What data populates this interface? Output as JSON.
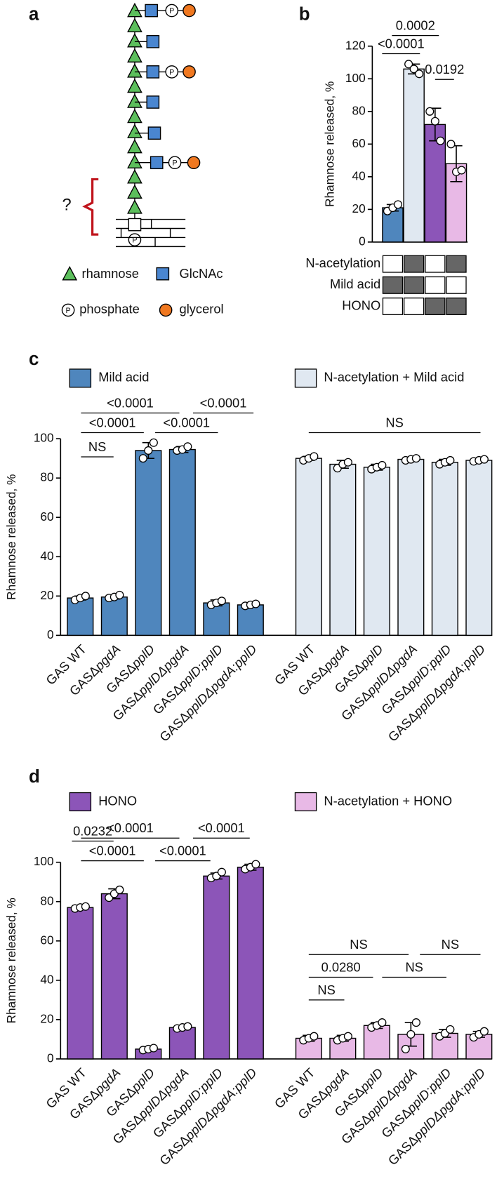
{
  "panel_labels": [
    "a",
    "b",
    "c",
    "d"
  ],
  "diagram": {
    "phosphate_symbol": "P",
    "question": "?",
    "legend": [
      "rhamnose",
      "GlcNAc",
      "phosphate",
      "glycerol"
    ]
  },
  "chart_data": [
    {
      "type": "bar",
      "y_label": "Rhamnose released, %",
      "values": [
        21,
        106,
        72,
        48
      ],
      "errors": [
        2,
        3,
        10,
        11
      ],
      "points": [
        [
          19,
          21,
          23
        ],
        [
          109,
          106,
          103
        ],
        [
          80,
          74,
          62
        ],
        [
          60,
          43,
          44
        ]
      ],
      "colors": [
        "#4f86bd",
        "#e0e8f1",
        "#8c55b8",
        "#e8b9e6"
      ],
      "ylim": [
        0,
        120
      ],
      "yticks": [
        0,
        20,
        40,
        60,
        80,
        100,
        120
      ],
      "annotations": [
        "<0.0001",
        "0.0002",
        "0.0192"
      ],
      "conditions": [
        {
          "label": "N-acetylation",
          "values": [
            false,
            true,
            false,
            true
          ]
        },
        {
          "label": "Mild acid",
          "values": [
            true,
            true,
            false,
            false
          ]
        },
        {
          "label": "HONO",
          "values": [
            false,
            false,
            true,
            true
          ]
        }
      ]
    },
    {
      "type": "bar",
      "y_label": "Rhamnose released, %",
      "categories": [
        "GAS WT",
        "GASΔpgdA",
        "GASΔpplD",
        "GASΔpplDΔpgdA",
        "GASΔpplD:pplD",
        "GASΔpplDΔpgdA:pplD"
      ],
      "series": [
        {
          "name": "Mild acid",
          "color": "#4f86bd",
          "values": [
            19,
            19.5,
            94,
            94.5,
            16.5,
            15.5
          ],
          "errors": [
            1,
            1,
            4,
            1.5,
            1.5,
            0.5
          ],
          "points": [
            [
              18,
              19,
              20
            ],
            [
              19,
              19.5,
              20.5
            ],
            [
              90,
              94,
              98
            ],
            [
              94,
              94.5,
              96
            ],
            [
              15.5,
              16.5,
              17.5
            ],
            [
              15,
              15.5,
              16
            ]
          ]
        },
        {
          "name": "N-acetylation + Mild acid",
          "color": "#e0e8f1",
          "values": [
            90,
            87,
            85.5,
            89.5,
            88,
            89
          ],
          "errors": [
            1,
            2,
            1.5,
            0.5,
            1.5,
            0.5
          ],
          "points": [
            [
              89,
              90,
              91
            ],
            [
              85,
              87,
              88
            ],
            [
              84.5,
              85.5,
              86.5
            ],
            [
              89,
              89.5,
              90
            ],
            [
              87,
              88,
              89
            ],
            [
              88.5,
              89,
              89.5
            ]
          ]
        }
      ],
      "ylim": [
        0,
        100
      ],
      "yticks": [
        0,
        20,
        40,
        60,
        80,
        100
      ],
      "annotations": [
        "NS",
        "<0.0001",
        "<0.0001",
        "<0.0001",
        "<0.0001",
        "NS"
      ]
    },
    {
      "type": "bar",
      "y_label": "Rhamnose released, %",
      "categories": [
        "GAS WT",
        "GASΔpgdA",
        "GASΔpplD",
        "GASΔpplDΔpgdA",
        "GASΔpplD:pplD",
        "GASΔpplDΔpgdA:pplD"
      ],
      "series": [
        {
          "name": "HONO",
          "color": "#8c55b8",
          "values": [
            77,
            84,
            5,
            16,
            93,
            97.5
          ],
          "errors": [
            1,
            2.5,
            0.5,
            0.5,
            1.5,
            1.5
          ],
          "points": [
            [
              76.5,
              77,
              77.5
            ],
            [
              82,
              84,
              86
            ],
            [
              4.5,
              5,
              5.5
            ],
            [
              15.5,
              16,
              16.5
            ],
            [
              92,
              93,
              95
            ],
            [
              96.5,
              97.5,
              99
            ]
          ]
        },
        {
          "name": "N-acetylation + HONO",
          "color": "#e8b9e6",
          "values": [
            10.5,
            10.5,
            17,
            12.5,
            13,
            12.5
          ],
          "errors": [
            1.5,
            1.5,
            1.5,
            6,
            2,
            1.5
          ],
          "points": [
            [
              9.5,
              10.5,
              11.5
            ],
            [
              9.5,
              10.5,
              11.5
            ],
            [
              16,
              17,
              18.5
            ],
            [
              5,
              12.5,
              18.5
            ],
            [
              11.5,
              13,
              15
            ],
            [
              11,
              12.5,
              14
            ]
          ]
        }
      ],
      "ylim": [
        0,
        100
      ],
      "yticks": [
        0,
        20,
        40,
        60,
        80,
        100
      ],
      "annotations": [
        "0.0232",
        "<0.0001",
        "<0.0001",
        "<0.0001",
        "<0.0001",
        "NS",
        "NS",
        "0.0280",
        "NS",
        "NS"
      ]
    }
  ]
}
